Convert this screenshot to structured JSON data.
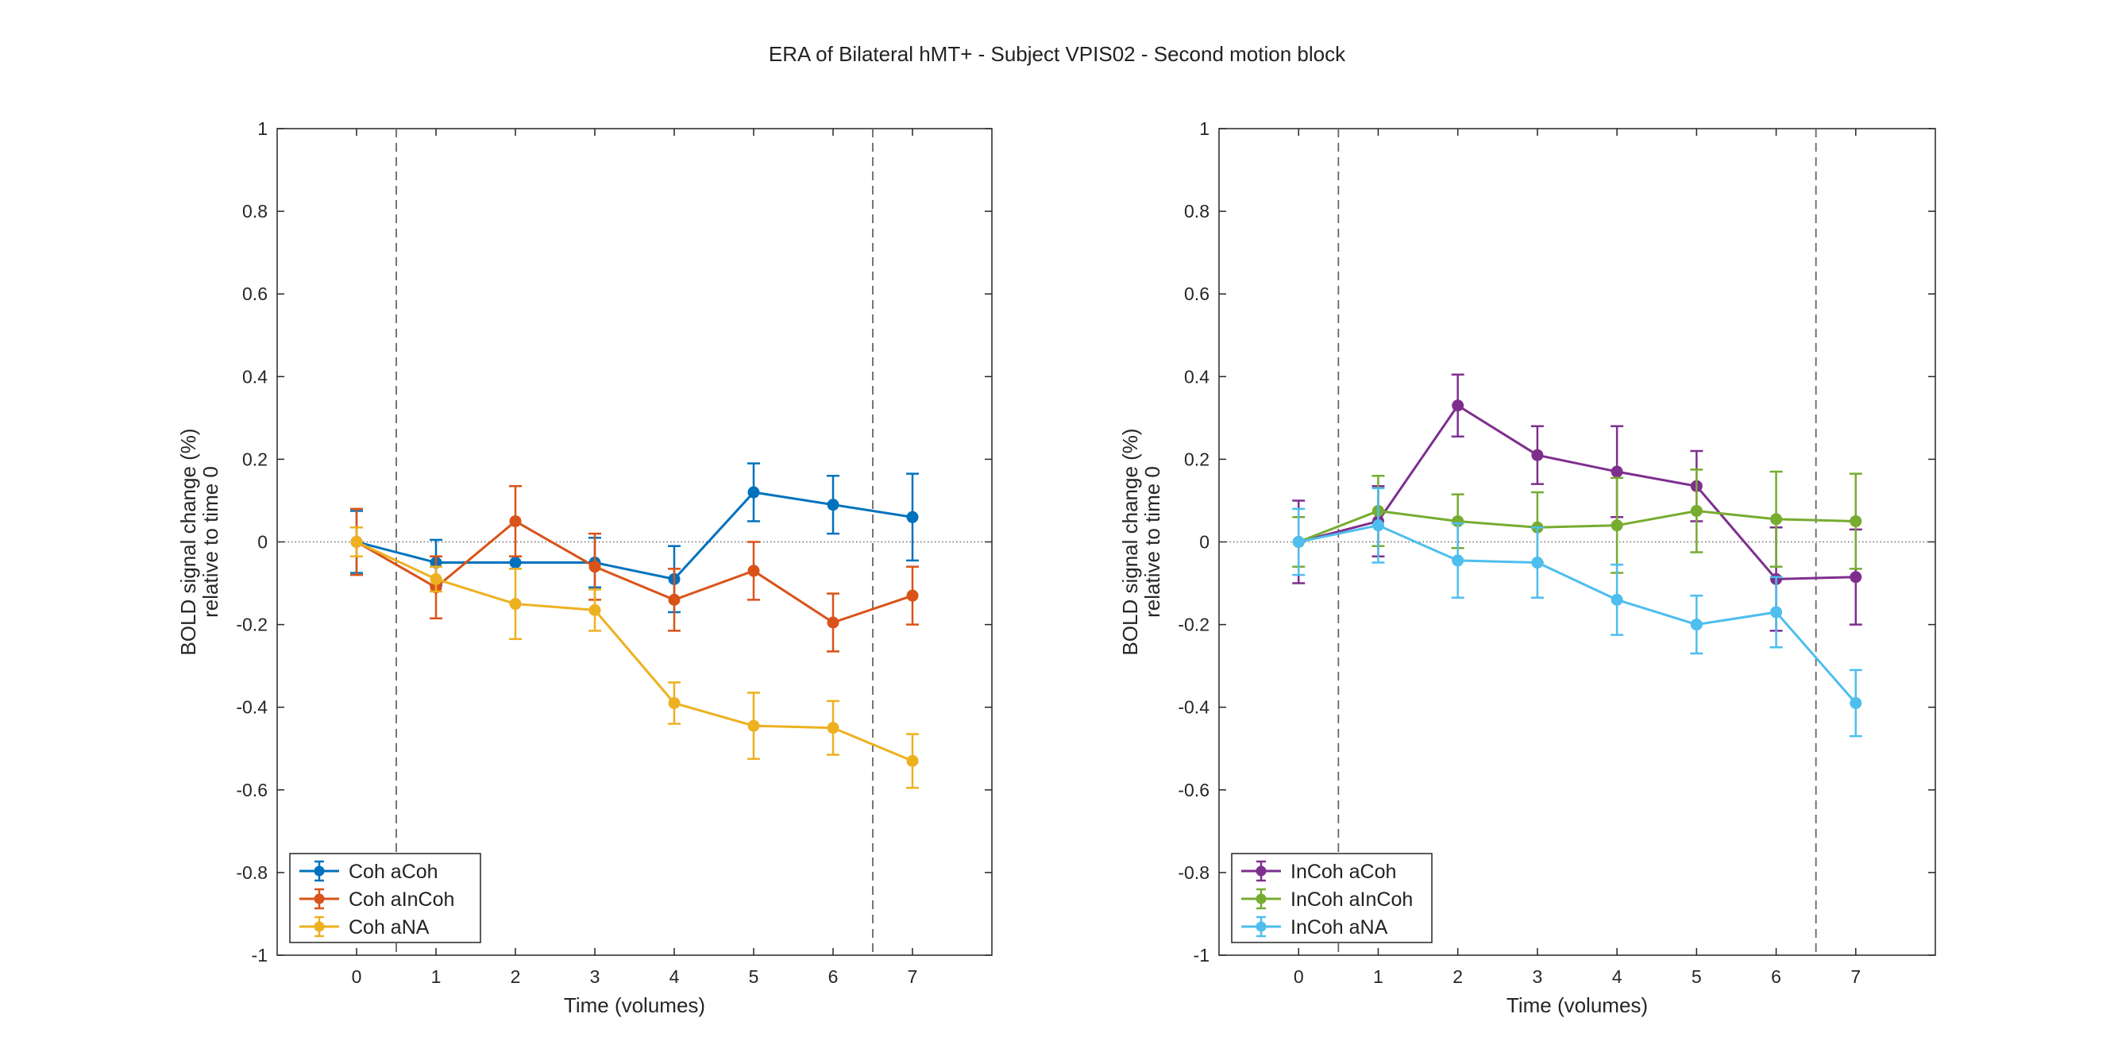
{
  "figure": {
    "title": "ERA of Bilateral hMT+ - Subject VPIS02 - Second motion block"
  },
  "chart_data": [
    {
      "type": "line",
      "xlabel": "Time (volumes)",
      "ylabel": [
        "BOLD signal change (%)",
        "relative to time 0"
      ],
      "xlim": [
        -1,
        8
      ],
      "ylim": [
        -1,
        1
      ],
      "xticks": [
        0,
        1,
        2,
        3,
        4,
        5,
        6,
        7
      ],
      "yticks": [
        -1,
        -0.8,
        -0.6,
        -0.4,
        -0.2,
        0,
        0.2,
        0.4,
        0.6,
        0.8,
        1
      ],
      "ytick_labels": [
        "-1",
        "-0.8",
        "-0.6",
        "-0.4",
        "-0.2",
        "0",
        "0.2",
        "0.4",
        "0.6",
        "0.8",
        "1"
      ],
      "vlines": [
        0.5,
        6.5
      ],
      "hline": 0,
      "legend_position": "bottom-left",
      "x": [
        0,
        1,
        2,
        3,
        4,
        5,
        6,
        7
      ],
      "series": [
        {
          "name": "Coh aCoh",
          "color": "#0072BD",
          "values": [
            0,
            -0.05,
            -0.05,
            -0.05,
            -0.09,
            0.12,
            0.09,
            0.06
          ],
          "errors": [
            0.075,
            0.055,
            0.015,
            0.06,
            0.08,
            0.07,
            0.07,
            0.105
          ]
        },
        {
          "name": "Coh aInCoh",
          "color": "#D95319",
          "values": [
            0,
            -0.11,
            0.05,
            -0.06,
            -0.14,
            -0.07,
            -0.195,
            -0.13
          ],
          "errors": [
            0.08,
            0.075,
            0.085,
            0.08,
            0.075,
            0.07,
            0.07,
            0.07
          ]
        },
        {
          "name": "Coh aNA",
          "color": "#EDB120",
          "values": [
            0,
            -0.09,
            -0.15,
            -0.165,
            -0.39,
            -0.445,
            -0.45,
            -0.53
          ],
          "errors": [
            0.035,
            0.03,
            0.085,
            0.05,
            0.05,
            0.08,
            0.065,
            0.065
          ]
        }
      ]
    },
    {
      "type": "line",
      "xlabel": "Time (volumes)",
      "ylabel": [
        "BOLD signal change (%)",
        "relative to time 0"
      ],
      "xlim": [
        -1,
        8
      ],
      "ylim": [
        -1,
        1
      ],
      "xticks": [
        0,
        1,
        2,
        3,
        4,
        5,
        6,
        7
      ],
      "yticks": [
        -1,
        -0.8,
        -0.6,
        -0.4,
        -0.2,
        0,
        0.2,
        0.4,
        0.6,
        0.8,
        1
      ],
      "ytick_labels": [
        "-1",
        "-0.8",
        "-0.6",
        "-0.4",
        "-0.2",
        "0",
        "0.2",
        "0.4",
        "0.6",
        "0.8",
        "1"
      ],
      "vlines": [
        0.5,
        6.5
      ],
      "hline": 0,
      "legend_position": "bottom-left",
      "x": [
        0,
        1,
        2,
        3,
        4,
        5,
        6,
        7
      ],
      "series": [
        {
          "name": "InCoh aCoh",
          "color": "#7E2F8E",
          "values": [
            0,
            0.05,
            0.33,
            0.21,
            0.17,
            0.135,
            -0.09,
            -0.085
          ],
          "errors": [
            0.1,
            0.085,
            0.075,
            0.07,
            0.11,
            0.085,
            0.125,
            0.115
          ]
        },
        {
          "name": "InCoh aInCoh",
          "color": "#77AC30",
          "values": [
            0,
            0.075,
            0.05,
            0.035,
            0.04,
            0.075,
            0.055,
            0.05
          ],
          "errors": [
            0.06,
            0.085,
            0.065,
            0.085,
            0.115,
            0.1,
            0.115,
            0.115
          ]
        },
        {
          "name": "InCoh aNA",
          "color": "#4DBEEE",
          "values": [
            0,
            0.04,
            -0.045,
            -0.05,
            -0.14,
            -0.2,
            -0.17,
            -0.39
          ],
          "errors": [
            0.08,
            0.09,
            0.09,
            0.085,
            0.085,
            0.07,
            0.085,
            0.08
          ]
        }
      ]
    }
  ]
}
